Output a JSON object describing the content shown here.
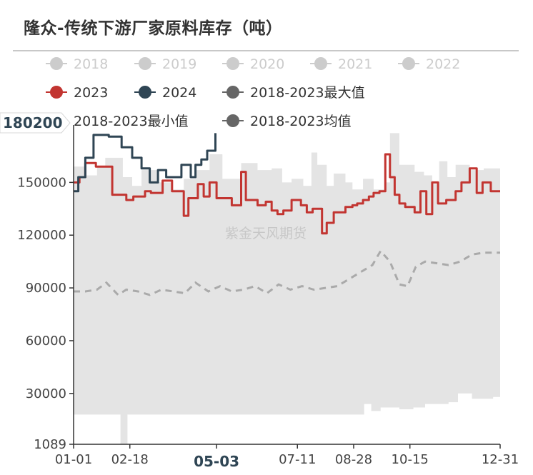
{
  "title": "隆众-传统下游厂家原料库存（吨）",
  "watermark": "紫金天风期货",
  "chart_data": {
    "type": "line",
    "title": "隆众-传统下游厂家原料库存（吨）",
    "legend": [
      {
        "name": "2018",
        "color": "#cccccc",
        "active": false
      },
      {
        "name": "2019",
        "color": "#cccccc",
        "active": false
      },
      {
        "name": "2020",
        "color": "#cccccc",
        "active": false
      },
      {
        "name": "2021",
        "color": "#cccccc",
        "active": false
      },
      {
        "name": "2022",
        "color": "#cccccc",
        "active": false
      },
      {
        "name": "2023",
        "color": "#c23531",
        "active": true
      },
      {
        "name": "2024",
        "color": "#2f4554",
        "active": true
      },
      {
        "name": "2018-2023最大值",
        "color": "#666666",
        "active": true
      },
      {
        "name": "2018-2023最小值",
        "color": "#666666",
        "active": true
      },
      {
        "name": "2018-2023均值",
        "color": "#666666",
        "active": true
      }
    ],
    "legend_position": "top",
    "x_ticks": [
      "01-01",
      "02-18",
      "05-03",
      "07-11",
      "08-28",
      "10-15",
      "12-31"
    ],
    "x_tick_days": [
      0,
      48,
      122,
      191,
      239,
      287,
      364
    ],
    "x_pointer_label": "05-03",
    "y_ticks": [
      "1089",
      "30000",
      "60000",
      "90000",
      "120000",
      "150000"
    ],
    "y_tick_values": [
      1089,
      30000,
      60000,
      90000,
      120000,
      150000
    ],
    "y_pointer_label": "180200",
    "ylim": [
      1089,
      180200
    ],
    "grid": false,
    "series": [
      {
        "name": "2023",
        "color": "#c23531",
        "style": "step",
        "x": [
          0,
          5,
          10,
          19,
          33,
          45,
          51,
          61,
          66,
          76,
          84,
          94,
          98,
          106,
          111,
          116,
          122,
          130,
          135,
          143,
          147,
          157,
          164,
          169,
          174,
          179,
          186,
          194,
          199,
          204,
          212,
          216,
          222,
          232,
          238,
          242,
          247,
          252,
          256,
          261,
          266,
          270,
          274,
          278,
          283,
          291,
          296,
          301,
          306,
          311,
          318,
          326,
          331,
          338,
          344,
          349,
          356,
          364
        ],
        "y": [
          150000,
          153000,
          161000,
          159000,
          143000,
          140000,
          142000,
          145000,
          144000,
          151000,
          145000,
          131000,
          141000,
          149000,
          142000,
          150000,
          141000,
          141000,
          137000,
          156000,
          140000,
          137000,
          139000,
          134000,
          132000,
          134000,
          140000,
          137000,
          133000,
          135000,
          121000,
          127000,
          133000,
          136000,
          137000,
          138000,
          140000,
          142000,
          144000,
          145000,
          166000,
          153000,
          143000,
          138000,
          136000,
          133000,
          145000,
          132000,
          150000,
          138000,
          140000,
          145000,
          150000,
          158000,
          144000,
          150000,
          145000,
          145000
        ]
      },
      {
        "name": "2024",
        "color": "#2f4554",
        "style": "step",
        "x": [
          0,
          4,
          10,
          17,
          30,
          41,
          50,
          58,
          65,
          72,
          79,
          88,
          92,
          100,
          104,
          109,
          114,
          121
        ],
        "y": [
          145000,
          153000,
          164000,
          177000,
          176000,
          170000,
          164000,
          158000,
          150000,
          157000,
          153000,
          153000,
          160000,
          153000,
          160000,
          163000,
          168000,
          178000
        ]
      },
      {
        "name": "2018-2023最大值",
        "color": "#e4e4e4",
        "style": "area-band-top",
        "x": [
          0,
          10,
          20,
          27,
          42,
          50,
          58,
          72,
          84,
          94,
          104,
          116,
          127,
          143,
          157,
          169,
          178,
          186,
          196,
          203,
          208,
          216,
          222,
          232,
          238,
          247,
          256,
          266,
          270,
          278,
          291,
          299,
          306,
          312,
          319,
          326,
          338,
          350,
          364
        ],
        "y": [
          159000,
          154000,
          159000,
          164000,
          153000,
          148000,
          157000,
          150000,
          146000,
          152000,
          157000,
          166000,
          152000,
          161000,
          157000,
          158000,
          150000,
          152000,
          148000,
          167000,
          160000,
          148000,
          155000,
          150000,
          146000,
          152000,
          146000,
          150000,
          178000,
          160000,
          156000,
          154000,
          149000,
          162000,
          153000,
          160000,
          157000,
          158000,
          158000
        ]
      },
      {
        "name": "2018-2023最小值",
        "color": "#e4e4e4",
        "style": "area-band-bottom",
        "x": [
          0,
          37,
          40,
          43,
          46,
          100,
          130,
          160,
          190,
          238,
          248,
          254,
          262,
          278,
          290,
          300,
          320,
          328,
          340,
          358,
          364
        ],
        "y": [
          18000,
          18000,
          1089,
          1089,
          18000,
          18000,
          18000,
          18000,
          18000,
          18000,
          24000,
          20000,
          22000,
          21000,
          22000,
          24000,
          25000,
          30000,
          27000,
          28000,
          27000
        ]
      },
      {
        "name": "2018-2023均值",
        "color": "#aaaaaa",
        "style": "dashed",
        "x": [
          0,
          10,
          20,
          28,
          38,
          45,
          55,
          65,
          75,
          85,
          95,
          104,
          115,
          125,
          135,
          145,
          155,
          165,
          175,
          185,
          195,
          205,
          215,
          225,
          235,
          245,
          255,
          262,
          270,
          278,
          285,
          292,
          300,
          310,
          320,
          330,
          340,
          350,
          364
        ],
        "y": [
          88000,
          88000,
          89000,
          93000,
          86000,
          89000,
          88000,
          86000,
          89000,
          88000,
          87000,
          93000,
          88000,
          91000,
          88000,
          89000,
          91000,
          87000,
          92000,
          89000,
          91000,
          89000,
          90000,
          91000,
          95000,
          99000,
          103000,
          111000,
          105000,
          92000,
          91000,
          102000,
          105000,
          104000,
          103000,
          105000,
          109000,
          110000,
          110000
        ]
      }
    ]
  }
}
